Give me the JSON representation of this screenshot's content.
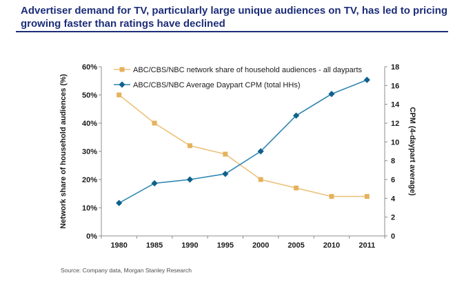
{
  "page": {
    "title": "Advertiser demand for TV, particularly large unique audiences on TV, has led to pricing growing faster than ratings have declined",
    "title_color": "#1c2d78",
    "source": "Source: Company data, Morgan Stanley Research"
  },
  "chart_data": {
    "type": "line",
    "categories": [
      "1980",
      "1985",
      "1990",
      "1995",
      "2000",
      "2005",
      "2010",
      "2011"
    ],
    "series": [
      {
        "name": "ABC/CBS/NBC network share of household audiences - all dayparts",
        "axis": "left",
        "values": [
          50,
          40,
          32,
          29,
          20,
          17,
          14,
          14
        ],
        "marker": "square",
        "line_color": "#ecc17a",
        "marker_color": "#e5b25c"
      },
      {
        "name": "ABC/CBS/NBC Average Daypart CPM (total HHs)",
        "axis": "right",
        "values": [
          3.5,
          5.6,
          6.0,
          6.6,
          9.0,
          12.8,
          15.1,
          16.6
        ],
        "marker": "diamond",
        "line_color": "#2e85b2",
        "marker_color": "#0f618c"
      }
    ],
    "left_axis": {
      "label": "Network share of household audiences (%)",
      "min": 0,
      "max": 60,
      "step": 10,
      "suffix": "%"
    },
    "right_axis": {
      "label": "CPM (4-daypart average)",
      "min": 0,
      "max": 18,
      "step": 2,
      "suffix": ""
    },
    "legend_position": "top-left-inside",
    "grid": false,
    "axis_color": "#8c8c8c",
    "tick_text_color": "#1a1a1a",
    "legend_text_color": "#1a1a1a"
  }
}
